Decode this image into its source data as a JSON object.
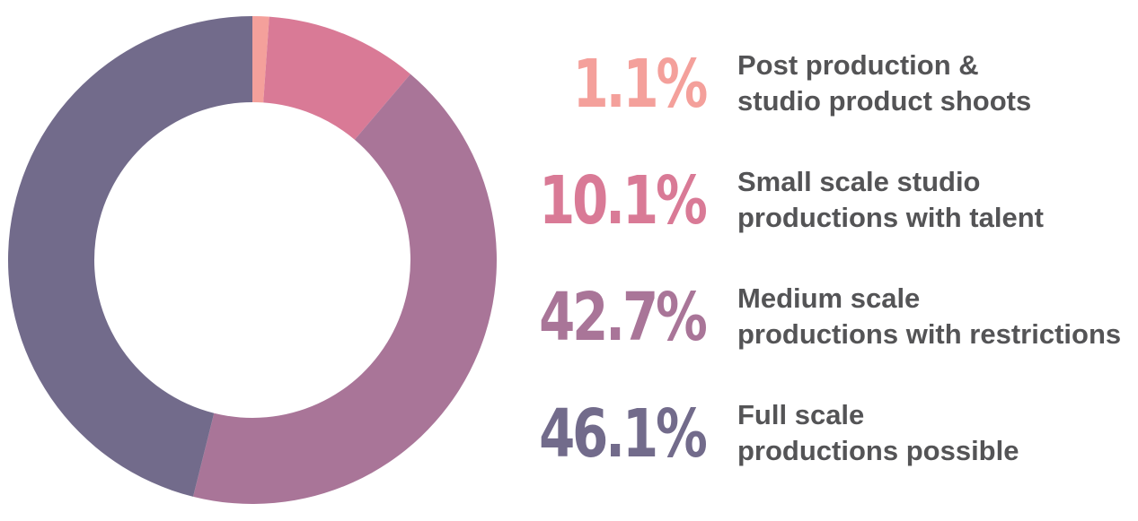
{
  "chart_data": {
    "type": "pie",
    "donut": true,
    "slices": [
      {
        "value": 1.1,
        "label": "1.1%",
        "line1": "Post production &",
        "line2": "studio product shoots",
        "color": "#F4A09B"
      },
      {
        "value": 10.1,
        "label": "10.1%",
        "line1": "Small scale studio",
        "line2": "productions with talent",
        "color": "#D97A96"
      },
      {
        "value": 42.7,
        "label": "42.7%",
        "line1": "Medium scale",
        "line2": "productions with restrictions",
        "color": "#A97598"
      },
      {
        "value": 46.1,
        "label": "46.1%",
        "line1": "Full scale",
        "line2": "productions possible",
        "color": "#726B8B"
      }
    ],
    "legend_placement": "right"
  }
}
